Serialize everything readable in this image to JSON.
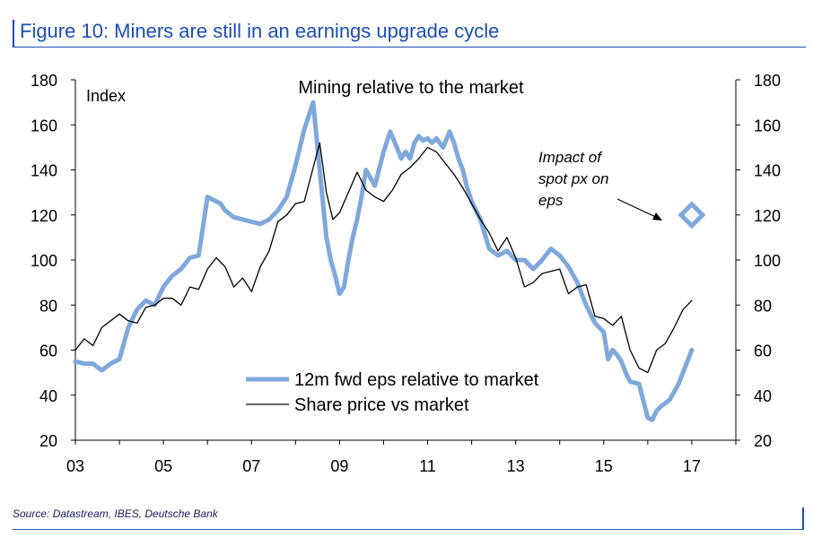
{
  "figure": {
    "title": "Figure 10: Miners are still in an earnings upgrade cycle",
    "source": "Source: Datastream, IBES, Deutsche Bank"
  },
  "chart_data": {
    "type": "line",
    "title": "Mining relative to the market",
    "ylabel": "Index",
    "xlabel": "",
    "ylim": [
      20,
      180
    ],
    "xlim": [
      2003.0,
      2018.0
    ],
    "yticks": [
      "20",
      "40",
      "60",
      "80",
      "100",
      "120",
      "140",
      "160",
      "180"
    ],
    "xticks": [
      {
        "label": "03",
        "value": 2003
      },
      {
        "label": "05",
        "value": 2005
      },
      {
        "label": "07",
        "value": 2007
      },
      {
        "label": "09",
        "value": 2009
      },
      {
        "label": "11",
        "value": 2011
      },
      {
        "label": "13",
        "value": 2013
      },
      {
        "label": "15",
        "value": 2015
      },
      {
        "label": "17",
        "value": 2017
      }
    ],
    "grid": false,
    "legend": "bottom-center",
    "series": [
      {
        "name": "12m fwd eps relative to market",
        "color": "#7fa8dc",
        "x": [
          2003.0,
          2003.2,
          2003.4,
          2003.6,
          2003.8,
          2004.0,
          2004.2,
          2004.4,
          2004.6,
          2004.8,
          2005.0,
          2005.2,
          2005.4,
          2005.6,
          2005.8,
          2006.0,
          2006.2,
          2006.3,
          2006.4,
          2006.6,
          2006.8,
          2007.0,
          2007.2,
          2007.4,
          2007.6,
          2007.8,
          2008.0,
          2008.2,
          2008.4,
          2008.55,
          2008.7,
          2008.8,
          2008.9,
          2009.0,
          2009.1,
          2009.2,
          2009.3,
          2009.4,
          2009.5,
          2009.6,
          2009.8,
          2010.0,
          2010.15,
          2010.3,
          2010.4,
          2010.5,
          2010.6,
          2010.7,
          2010.8,
          2010.9,
          2011.0,
          2011.1,
          2011.2,
          2011.35,
          2011.5,
          2011.6,
          2011.7,
          2011.8,
          2011.9,
          2012.0,
          2012.2,
          2012.4,
          2012.6,
          2012.8,
          2013.0,
          2013.2,
          2013.4,
          2013.6,
          2013.8,
          2014.0,
          2014.2,
          2014.4,
          2014.6,
          2014.8,
          2015.0,
          2015.1,
          2015.2,
          2015.3,
          2015.4,
          2015.5,
          2015.6,
          2015.8,
          2016.0,
          2016.1,
          2016.2,
          2016.3,
          2016.5,
          2016.7,
          2016.9,
          2017.0
        ],
        "values": [
          55,
          54,
          54,
          51,
          54,
          56,
          70,
          78,
          82,
          80,
          88,
          93,
          96,
          101,
          102,
          128,
          126,
          125,
          122,
          119,
          118,
          117,
          116,
          118,
          122,
          128,
          142,
          158,
          170,
          140,
          110,
          100,
          93,
          85,
          88,
          100,
          110,
          118,
          128,
          140,
          133,
          148,
          157,
          150,
          145,
          148,
          145,
          152,
          155,
          153,
          154,
          152,
          154,
          150,
          157,
          152,
          145,
          140,
          132,
          126,
          118,
          105,
          102,
          104,
          100,
          100,
          96,
          100,
          105,
          102,
          97,
          90,
          80,
          72,
          68,
          56,
          60,
          58,
          55,
          50,
          46,
          45,
          30,
          29,
          33,
          35,
          38,
          45,
          55,
          60
        ]
      },
      {
        "name": "Share price vs market",
        "color": "#000000",
        "x": [
          2003.0,
          2003.2,
          2003.4,
          2003.6,
          2003.8,
          2004.0,
          2004.2,
          2004.4,
          2004.6,
          2004.8,
          2005.0,
          2005.2,
          2005.4,
          2005.6,
          2005.8,
          2006.0,
          2006.2,
          2006.4,
          2006.6,
          2006.8,
          2007.0,
          2007.2,
          2007.4,
          2007.6,
          2007.8,
          2008.0,
          2008.2,
          2008.4,
          2008.55,
          2008.7,
          2008.85,
          2009.0,
          2009.2,
          2009.4,
          2009.6,
          2009.8,
          2010.0,
          2010.2,
          2010.4,
          2010.6,
          2010.8,
          2011.0,
          2011.2,
          2011.4,
          2011.6,
          2011.8,
          2012.0,
          2012.2,
          2012.4,
          2012.6,
          2012.8,
          2013.0,
          2013.2,
          2013.4,
          2013.6,
          2013.8,
          2014.0,
          2014.2,
          2014.4,
          2014.6,
          2014.8,
          2015.0,
          2015.2,
          2015.4,
          2015.6,
          2015.8,
          2016.0,
          2016.2,
          2016.4,
          2016.6,
          2016.8,
          2017.0
        ],
        "values": [
          60,
          65,
          62,
          70,
          73,
          76,
          73,
          72,
          79,
          80,
          83,
          83,
          80,
          88,
          87,
          96,
          101,
          97,
          88,
          92,
          86,
          97,
          104,
          117,
          120,
          125,
          126,
          141,
          152,
          130,
          118,
          121,
          130,
          139,
          131,
          128,
          126,
          131,
          138,
          141,
          145,
          150,
          148,
          143,
          138,
          132,
          125,
          118,
          112,
          104,
          110,
          101,
          88,
          90,
          94,
          95,
          96,
          85,
          88,
          89,
          75,
          74,
          71,
          75,
          60,
          52,
          50,
          60,
          63,
          70,
          78,
          82
        ]
      }
    ],
    "annotations": [
      {
        "text_lines": [
          "Impact of",
          "spot px on",
          "eps"
        ],
        "marker": {
          "x": 2017.0,
          "y": 120,
          "shape": "diamond",
          "color": "#7fa8dc"
        }
      }
    ]
  }
}
